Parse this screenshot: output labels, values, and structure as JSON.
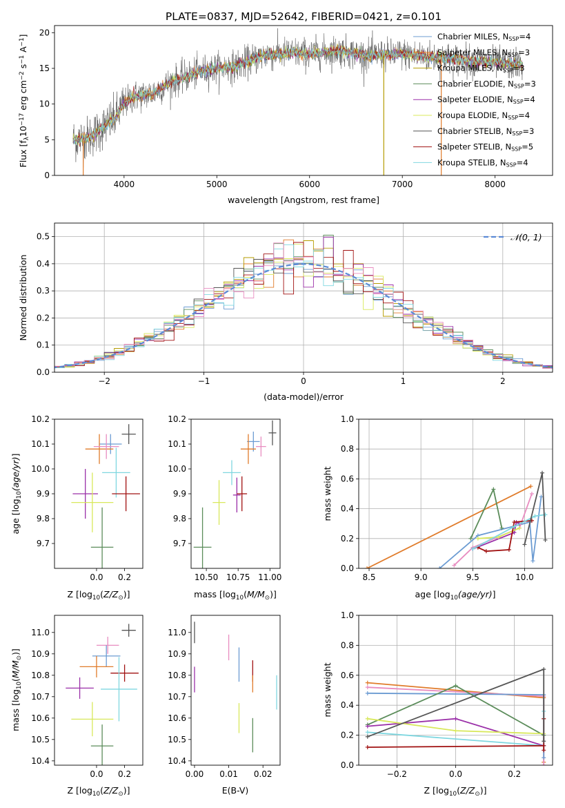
{
  "title": "PLATE=0837, MJD=52642, FIBERID=0421, z=0.101",
  "colors": {
    "Chabrier MILES": "#6b9bd2",
    "Salpeter MILES": "#e07b2a",
    "Kroupa MILES": "#b59b00",
    "Chabrier ELODIE": "#5b8c5a",
    "Salpeter ELODIE": "#9a2fa8",
    "Kroupa ELODIE": "#d8e85a",
    "Chabrier STELIB": "#555555",
    "Salpeter STELIB": "#a01010",
    "Kroupa STELIB": "#7fd7e0",
    "pink": "#e88cc0",
    "normal": "#5b8ad6"
  },
  "chart_data": [
    {
      "id": "spectrum",
      "type": "line",
      "xlabel": "wavelength [Angstrom, rest frame]",
      "ylabel": "Flux [f",
      "ylabel_full": "Flux [fλ10⁻¹⁷ erg cm⁻² s⁻¹ A⁻¹]",
      "xlim": [
        3250,
        8620
      ],
      "ylim": [
        0,
        21
      ],
      "xticks": [
        4000,
        5000,
        6000,
        7000,
        8000
      ],
      "yticks": [
        0,
        5,
        10,
        15,
        20
      ],
      "legend_position": "upper-right",
      "legend": [
        {
          "name": "Chabrier MILES, N",
          "sub": "SSP",
          "suffix": "=4"
        },
        {
          "name": "Salpeter MILES, N",
          "sub": "SSP",
          "suffix": "=3"
        },
        {
          "name": "Kroupa MILES, N",
          "sub": "SSP",
          "suffix": "=3"
        },
        {
          "name": "Chabrier ELODIE, N",
          "sub": "SSP",
          "suffix": "=3"
        },
        {
          "name": "Salpeter ELODIE, N",
          "sub": "SSP",
          "suffix": "=4"
        },
        {
          "name": "Kroupa ELODIE, N",
          "sub": "SSP",
          "suffix": "=4"
        },
        {
          "name": "Chabrier STELIB, N",
          "sub": "SSP",
          "suffix": "=3"
        },
        {
          "name": "Salpeter STELIB, N",
          "sub": "SSP",
          "suffix": "=5"
        },
        {
          "name": "Kroupa STELIB, N",
          "sub": "SSP",
          "suffix": "=4"
        }
      ],
      "continuum": [
        [
          3450,
          5.0
        ],
        [
          3600,
          5.2
        ],
        [
          3700,
          6.0
        ],
        [
          3800,
          7.0
        ],
        [
          3900,
          8.0
        ],
        [
          4000,
          10.0
        ],
        [
          4100,
          11.0
        ],
        [
          4300,
          11.5
        ],
        [
          4500,
          13.0
        ],
        [
          4800,
          14.5
        ],
        [
          5000,
          15.0
        ],
        [
          5200,
          15.3
        ],
        [
          5500,
          16.8
        ],
        [
          5800,
          17.2
        ],
        [
          6000,
          17.0
        ],
        [
          6300,
          17.5
        ],
        [
          6600,
          16.8
        ],
        [
          7000,
          17.0
        ],
        [
          7400,
          16.5
        ],
        [
          7800,
          16.0
        ],
        [
          8300,
          15.5
        ]
      ],
      "glitches": [
        {
          "x": 3560,
          "y": 0
        },
        {
          "x": 6800,
          "y": 0
        },
        {
          "x": 7420,
          "y": 0
        }
      ]
    },
    {
      "id": "residuals",
      "type": "histogram",
      "xlabel": "(data-model)/error",
      "ylabel": "Normed distribution",
      "xlim": [
        -2.5,
        2.5
      ],
      "ylim": [
        0,
        0.55
      ],
      "xticks": [
        -2,
        -1,
        0,
        1,
        2
      ],
      "yticks": [
        0.0,
        0.1,
        0.2,
        0.3,
        0.4,
        0.5
      ],
      "legend": "N(0,1)",
      "legend_position": "upper-right",
      "bin_width": 0.1
    },
    {
      "id": "age_vs_Z",
      "type": "scatter",
      "xlabel": "Z [log",
      "ylabel": "age  [log",
      "xlim": [
        -0.3,
        0.33
      ],
      "ylim": [
        9.6,
        10.2
      ],
      "xticks": [
        0.0,
        0.2
      ],
      "yticks": [
        9.7,
        9.8,
        9.9,
        10.0,
        10.1,
        10.2
      ],
      "points": [
        {
          "x": 0.1,
          "y": 10.1,
          "xe": 0.08,
          "ye": 0.04,
          "c": "Chabrier MILES"
        },
        {
          "x": 0.02,
          "y": 10.08,
          "xe": 0.1,
          "ye": 0.06,
          "c": "Salpeter MILES"
        },
        {
          "x": 0.07,
          "y": 10.09,
          "xe": 0.09,
          "ye": 0.05,
          "c": "pink"
        },
        {
          "x": 0.23,
          "y": 10.14,
          "xe": 0.05,
          "ye": 0.04,
          "c": "Chabrier STELIB"
        },
        {
          "x": 0.14,
          "y": 9.985,
          "xe": 0.1,
          "ye": 0.1,
          "c": "Kroupa STELIB"
        },
        {
          "x": -0.08,
          "y": 9.9,
          "xe": 0.09,
          "ye": 0.1,
          "c": "Salpeter ELODIE"
        },
        {
          "x": 0.21,
          "y": 9.9,
          "xe": 0.1,
          "ye": 0.07,
          "c": "Salpeter STELIB"
        },
        {
          "x": -0.03,
          "y": 9.865,
          "xe": 0.15,
          "ye": 0.12,
          "c": "Kroupa ELODIE"
        },
        {
          "x": 0.04,
          "y": 9.685,
          "xe": 0.08,
          "ye": 0.16,
          "c": "Chabrier ELODIE"
        }
      ]
    },
    {
      "id": "age_vs_mass",
      "type": "scatter",
      "xlabel": "mass [log",
      "xlim": [
        10.38,
        11.08
      ],
      "ylim": [
        9.6,
        10.2
      ],
      "xticks": [
        10.5,
        10.75,
        11.0
      ],
      "yticks": [
        9.7,
        9.8,
        9.9,
        10.0,
        10.1,
        10.2
      ],
      "points": [
        {
          "x": 10.87,
          "y": 10.11,
          "xe": 0.05,
          "ye": 0.04,
          "c": "Chabrier MILES"
        },
        {
          "x": 10.83,
          "y": 10.08,
          "xe": 0.06,
          "ye": 0.06,
          "c": "Salpeter MILES"
        },
        {
          "x": 10.93,
          "y": 10.09,
          "xe": 0.04,
          "ye": 0.04,
          "c": "pink"
        },
        {
          "x": 11.02,
          "y": 10.145,
          "xe": 0.03,
          "ye": 0.05,
          "c": "Chabrier STELIB"
        },
        {
          "x": 10.7,
          "y": 9.985,
          "xe": 0.07,
          "ye": 0.05,
          "c": "Kroupa STELIB"
        },
        {
          "x": 10.74,
          "y": 9.895,
          "xe": 0.03,
          "ye": 0.07,
          "c": "Salpeter ELODIE"
        },
        {
          "x": 10.78,
          "y": 9.9,
          "xe": 0.04,
          "ye": 0.07,
          "c": "Salpeter STELIB"
        },
        {
          "x": 10.6,
          "y": 9.865,
          "xe": 0.05,
          "ye": 0.09,
          "c": "Kroupa ELODIE"
        },
        {
          "x": 10.47,
          "y": 9.685,
          "xe": 0.07,
          "ye": 0.16,
          "c": "Chabrier ELODIE"
        }
      ]
    },
    {
      "id": "weight_vs_age",
      "type": "line",
      "xlabel": "age  [log",
      "ylabel": "mass weight",
      "xlim": [
        8.4,
        10.27
      ],
      "ylim": [
        0,
        1
      ],
      "xticks": [
        8.5,
        9.0,
        9.5,
        10.0
      ],
      "yticks": [
        0.0,
        0.2,
        0.4,
        0.6,
        0.8,
        1.0
      ],
      "series": [
        {
          "c": "Salpeter MILES",
          "pts": [
            [
              8.48,
              0.0
            ],
            [
              10.06,
              0.55
            ]
          ]
        },
        {
          "c": "Chabrier MILES",
          "pts": [
            [
              9.18,
              0.0
            ],
            [
              9.55,
              0.22
            ],
            [
              10.05,
              0.31
            ],
            [
              10.08,
              0.05
            ],
            [
              10.16,
              0.48
            ]
          ]
        },
        {
          "c": "pink",
          "pts": [
            [
              9.32,
              0.02
            ],
            [
              9.5,
              0.14
            ],
            [
              9.95,
              0.27
            ],
            [
              10.07,
              0.5
            ]
          ]
        },
        {
          "c": "Chabrier ELODIE",
          "pts": [
            [
              9.48,
              0.2
            ],
            [
              9.7,
              0.53
            ],
            [
              9.78,
              0.27
            ]
          ]
        },
        {
          "c": "Salpeter ELODIE",
          "pts": [
            [
              9.5,
              0.13
            ],
            [
              9.9,
              0.24
            ],
            [
              9.92,
              0.31
            ],
            [
              9.95,
              0.3
            ]
          ]
        },
        {
          "c": "Kroupa ELODIE",
          "pts": [
            [
              9.55,
              0.2
            ],
            [
              9.75,
              0.21
            ],
            [
              9.95,
              0.27
            ]
          ]
        },
        {
          "c": "Salpeter STELIB",
          "pts": [
            [
              9.55,
              0.14
            ],
            [
              9.63,
              0.115
            ],
            [
              9.85,
              0.125
            ],
            [
              9.9,
              0.31
            ],
            [
              10.07,
              0.32
            ]
          ]
        },
        {
          "c": "Kroupa STELIB",
          "pts": [
            [
              9.5,
              0.13
            ],
            [
              9.9,
              0.28
            ],
            [
              10.1,
              0.35
            ],
            [
              10.2,
              0.36
            ]
          ]
        },
        {
          "c": "Chabrier STELIB",
          "pts": [
            [
              10.0,
              0.16
            ],
            [
              10.17,
              0.64
            ],
            [
              10.2,
              0.19
            ]
          ]
        }
      ]
    },
    {
      "id": "mass_vs_Z",
      "type": "scatter",
      "xlabel": "Z [log",
      "ylabel": "mass [log",
      "xlim": [
        -0.3,
        0.33
      ],
      "ylim": [
        10.38,
        11.08
      ],
      "xticks": [
        0.0,
        0.2
      ],
      "yticks": [
        10.4,
        10.5,
        10.6,
        10.7,
        10.8,
        10.9,
        11.0
      ],
      "points": [
        {
          "x": 0.23,
          "y": 11.01,
          "xe": 0.05,
          "ye": 0.03,
          "c": "Chabrier STELIB"
        },
        {
          "x": 0.08,
          "y": 10.94,
          "xe": 0.08,
          "ye": 0.04,
          "c": "pink"
        },
        {
          "x": 0.07,
          "y": 10.89,
          "xe": 0.1,
          "ye": 0.05,
          "c": "Chabrier MILES"
        },
        {
          "x": 0.0,
          "y": 10.84,
          "xe": 0.12,
          "ye": 0.05,
          "c": "Salpeter MILES"
        },
        {
          "x": 0.2,
          "y": 10.81,
          "xe": 0.1,
          "ye": 0.04,
          "c": "Salpeter STELIB"
        },
        {
          "x": -0.12,
          "y": 10.74,
          "xe": 0.1,
          "ye": 0.05,
          "c": "Salpeter ELODIE"
        },
        {
          "x": 0.16,
          "y": 10.735,
          "xe": 0.13,
          "ye": 0.15,
          "c": "Kroupa STELIB"
        },
        {
          "x": -0.03,
          "y": 10.595,
          "xe": 0.15,
          "ye": 0.08,
          "c": "Kroupa ELODIE"
        },
        {
          "x": 0.04,
          "y": 10.47,
          "xe": 0.08,
          "ye": 0.1,
          "c": "Chabrier ELODIE"
        }
      ]
    },
    {
      "id": "mass_vs_ebv",
      "type": "scatter",
      "xlabel": "E(B-V)",
      "xlim": [
        -0.001,
        0.025
      ],
      "ylim": [
        10.38,
        11.08
      ],
      "xticks": [
        0.0,
        0.01,
        0.02
      ],
      "yticks": [
        10.4,
        10.5,
        10.6,
        10.7,
        10.8,
        10.9,
        11.0
      ],
      "points": [
        {
          "x": 0.0,
          "y": 11.0,
          "xe": 0,
          "ye": 0.05,
          "c": "Chabrier STELIB"
        },
        {
          "x": 0.0,
          "y": 10.78,
          "xe": 0,
          "ye": 0.06,
          "c": "Salpeter ELODIE"
        },
        {
          "x": 0.01,
          "y": 10.93,
          "xe": 0,
          "ye": 0.06,
          "c": "pink"
        },
        {
          "x": 0.013,
          "y": 10.85,
          "xe": 0,
          "ye": 0.08,
          "c": "Chabrier MILES"
        },
        {
          "x": 0.013,
          "y": 10.6,
          "xe": 0,
          "ye": 0.07,
          "c": "Kroupa ELODIE"
        },
        {
          "x": 0.017,
          "y": 10.82,
          "xe": 0,
          "ye": 0.05,
          "c": "Salpeter STELIB"
        },
        {
          "x": 0.017,
          "y": 10.76,
          "xe": 0,
          "ye": 0.04,
          "c": "Salpeter MILES"
        },
        {
          "x": 0.017,
          "y": 10.52,
          "xe": 0,
          "ye": 0.08,
          "c": "Chabrier ELODIE"
        },
        {
          "x": 0.024,
          "y": 10.72,
          "xe": 0,
          "ye": 0.08,
          "c": "Kroupa STELIB"
        }
      ]
    },
    {
      "id": "weight_vs_Z",
      "type": "line",
      "xlabel": "Z [log",
      "ylabel": "mass weight",
      "xlim": [
        -0.33,
        0.33
      ],
      "ylim": [
        0,
        1
      ],
      "xticks": [
        -0.2,
        0.0,
        0.2
      ],
      "yticks": [
        0.0,
        0.2,
        0.4,
        0.6,
        0.8,
        1.0
      ],
      "series": [
        {
          "c": "Salpeter MILES",
          "pts": [
            [
              -0.3,
              0.55
            ],
            [
              0.3,
              0.45
            ],
            [
              0.3,
              0.02
            ]
          ]
        },
        {
          "c": "pink",
          "pts": [
            [
              -0.3,
              0.52
            ],
            [
              0.3,
              0.46
            ],
            [
              0.3,
              0.0
            ]
          ]
        },
        {
          "c": "Chabrier MILES",
          "pts": [
            [
              -0.3,
              0.48
            ],
            [
              0.3,
              0.47
            ],
            [
              0.3,
              0.05
            ]
          ]
        },
        {
          "c": "Chabrier ELODIE",
          "pts": [
            [
              -0.3,
              0.27
            ],
            [
              0.0,
              0.53
            ],
            [
              0.3,
              0.2
            ]
          ]
        },
        {
          "c": "Salpeter ELODIE",
          "pts": [
            [
              -0.3,
              0.26
            ],
            [
              0.0,
              0.31
            ],
            [
              0.3,
              0.13
            ]
          ]
        },
        {
          "c": "Kroupa ELODIE",
          "pts": [
            [
              -0.3,
              0.31
            ],
            [
              0.0,
              0.23
            ],
            [
              0.3,
              0.21
            ]
          ]
        },
        {
          "c": "Kroupa STELIB",
          "pts": [
            [
              -0.3,
              0.22
            ],
            [
              0.3,
              0.13
            ],
            [
              0.3,
              0.36
            ]
          ]
        },
        {
          "c": "Salpeter STELIB",
          "pts": [
            [
              -0.3,
              0.12
            ],
            [
              0.3,
              0.13
            ],
            [
              0.3,
              0.31
            ],
            [
              0.3,
              0.1
            ]
          ]
        },
        {
          "c": "Chabrier STELIB",
          "pts": [
            [
              -0.3,
              0.19
            ],
            [
              0.3,
              0.64
            ],
            [
              0.3,
              0.16
            ]
          ]
        }
      ]
    }
  ],
  "label_parts": {
    "log10": "10",
    "z_over_zsun": "(Z/Z",
    "sun": "⊙",
    "close": ")]",
    "m_over_msun": "(M/M",
    "age_yr": "(age/yr)]",
    "age_yr_paren": "(age/yr)",
    "closebr": "]",
    "ylabel_spec": "Flux [f",
    "lambda": "λ",
    "ylabel_spec_rest": "10",
    "exp17": "−17",
    "erg": " erg cm",
    "exp2": "−2",
    "s": " s",
    "exp1": "−1",
    "A": " A",
    "normal_legend": "𝒩(0, 1)"
  }
}
